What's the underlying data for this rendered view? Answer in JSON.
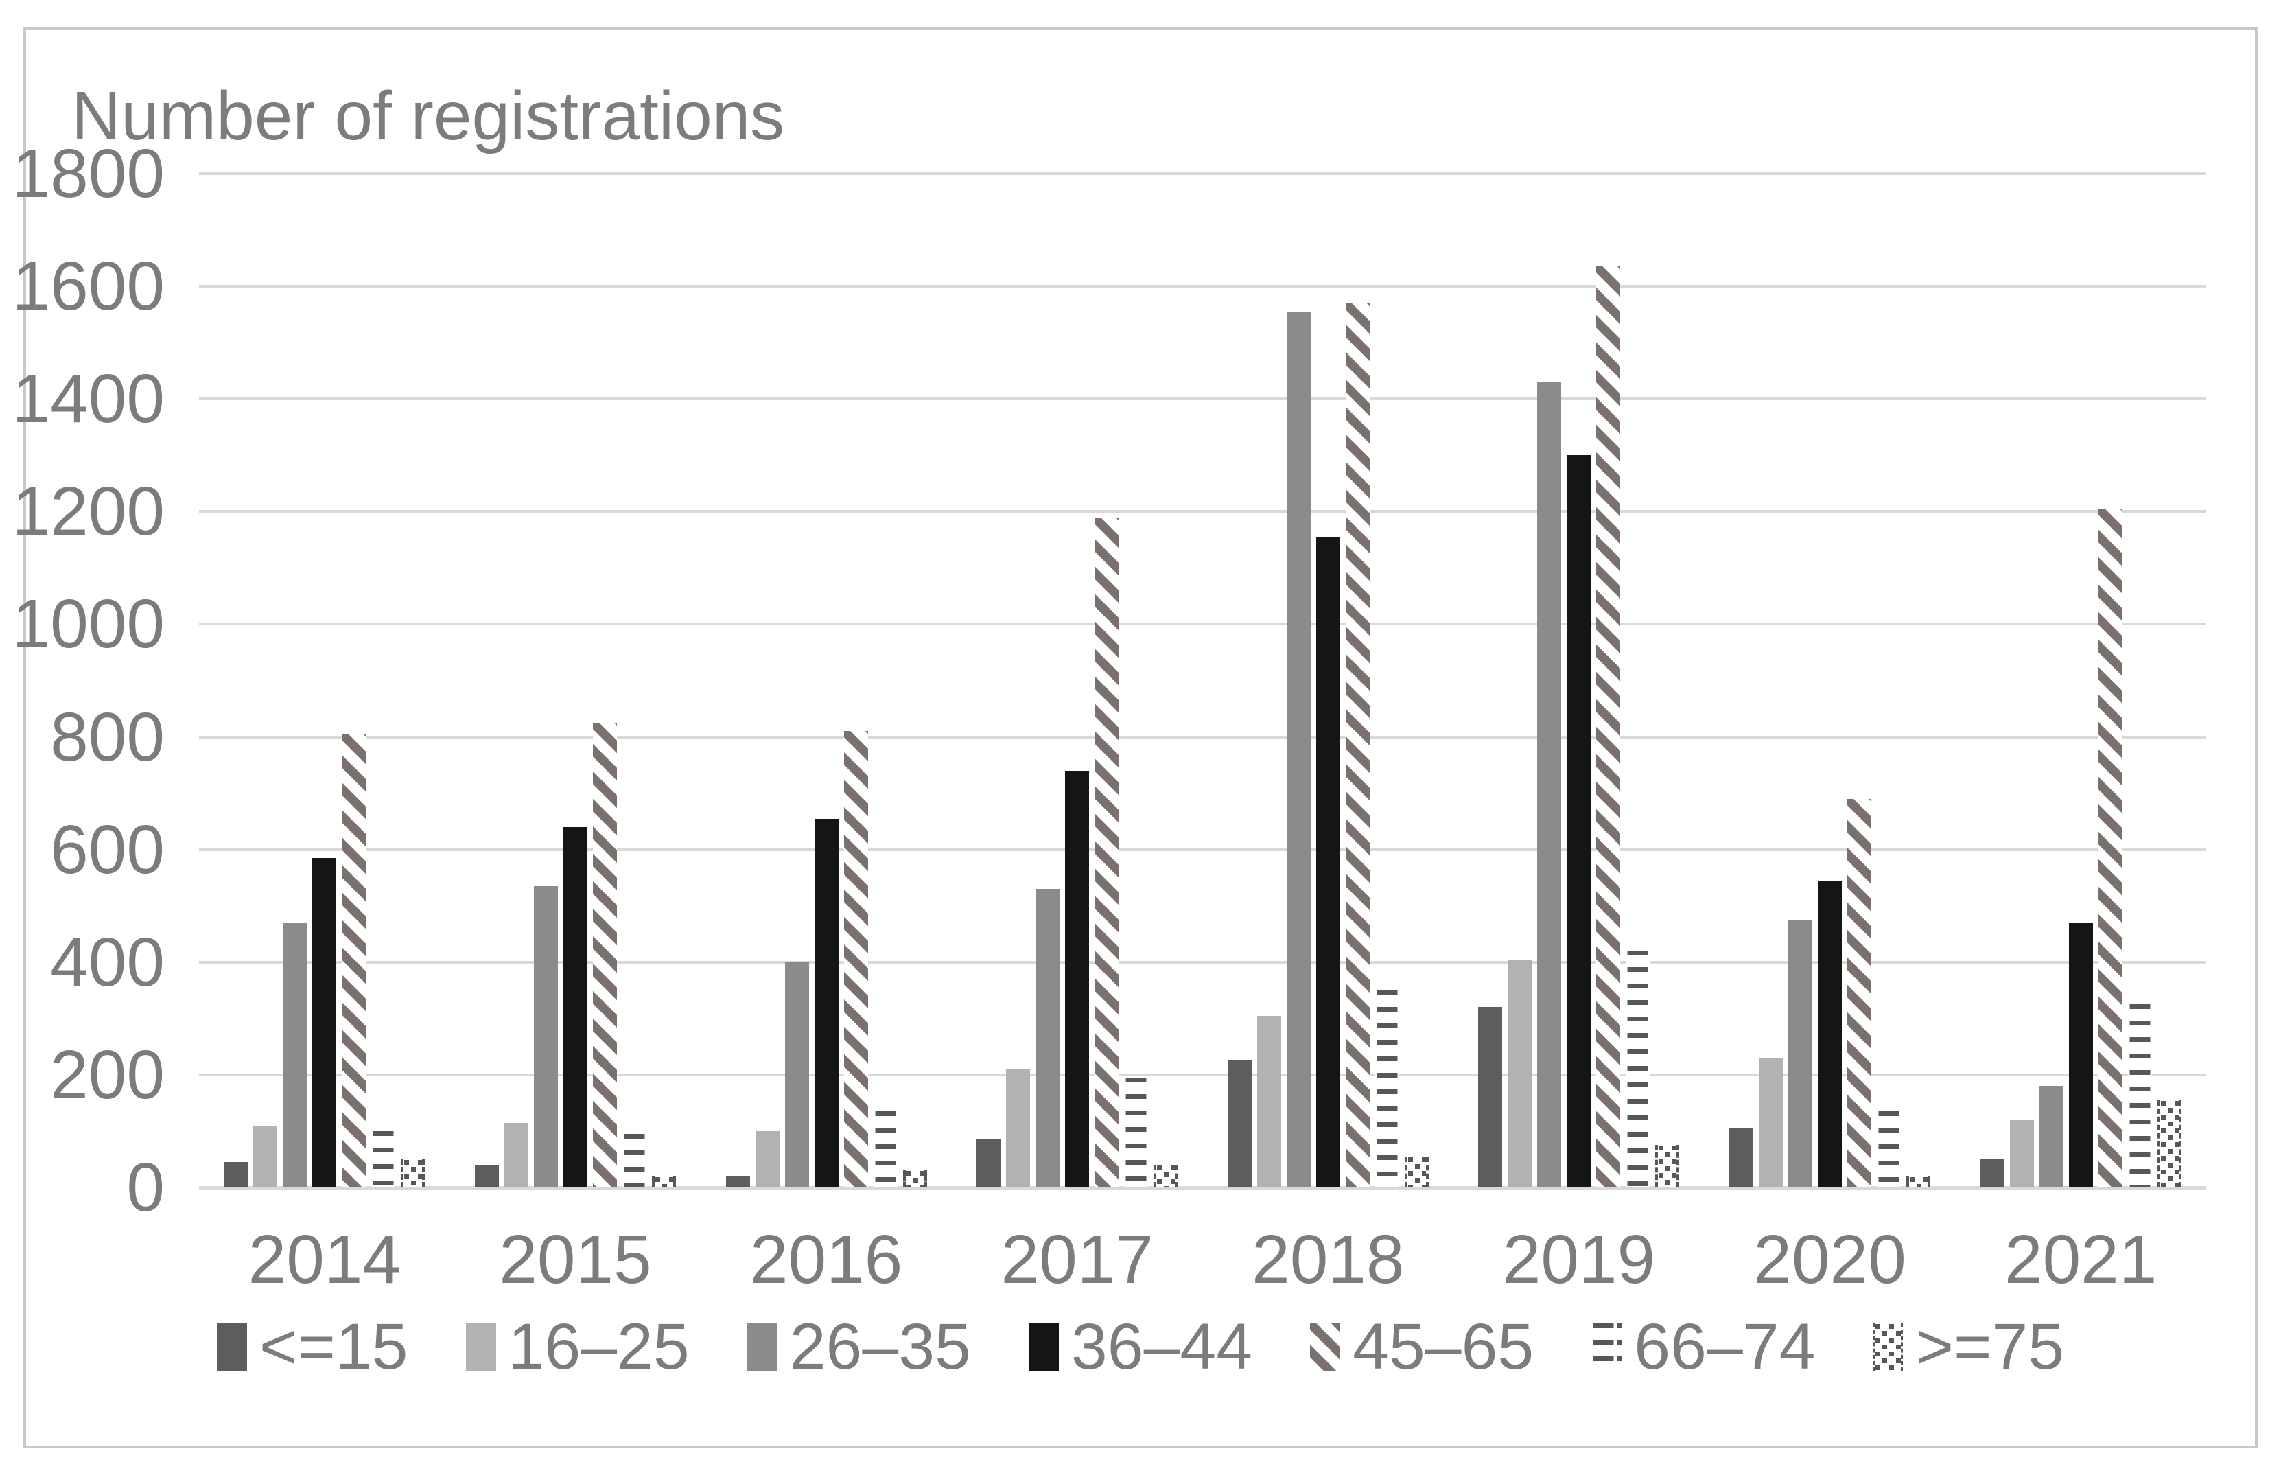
{
  "chart_data": {
    "type": "bar",
    "title": "Number of registrations",
    "xlabel": "",
    "ylabel": "",
    "ylim": [
      0,
      1800
    ],
    "ystep": 200,
    "grid": true,
    "legend_position": "bottom",
    "categories": [
      "2014",
      "2015",
      "2016",
      "2017",
      "2018",
      "2019",
      "2020",
      "2021"
    ],
    "series": [
      {
        "name": "<=15",
        "fill": "solid",
        "color": "#5d5d5d",
        "values": [
          45,
          40,
          20,
          85,
          225,
          320,
          105,
          50
        ]
      },
      {
        "name": "16–25",
        "fill": "solid",
        "color": "#b2b2b2",
        "values": [
          110,
          115,
          100,
          210,
          305,
          405,
          230,
          120
        ]
      },
      {
        "name": "26–35",
        "fill": "solid",
        "color": "#8b8b8b",
        "values": [
          470,
          535,
          400,
          530,
          1555,
          1430,
          475,
          180
        ]
      },
      {
        "name": "36–44",
        "fill": "solid",
        "color": "#151515",
        "values": [
          585,
          640,
          655,
          740,
          1155,
          1300,
          545,
          470
        ]
      },
      {
        "name": "45–65",
        "fill": "stripe",
        "color": "#7a706e",
        "values": [
          805,
          825,
          810,
          1190,
          1570,
          1635,
          690,
          1205
        ]
      },
      {
        "name": "66–74",
        "fill": "dash",
        "color": "#575757",
        "values": [
          100,
          95,
          135,
          195,
          350,
          420,
          135,
          325
        ]
      },
      {
        "name": ">=75",
        "fill": "dot",
        "color": "#575757",
        "values": [
          50,
          20,
          30,
          40,
          55,
          75,
          20,
          155
        ]
      }
    ],
    "colors": {
      "gridline": "#d9d9d9",
      "text": "#7c7c7c",
      "frame_border": "#c9c9c9",
      "background": "#ffffff"
    }
  }
}
